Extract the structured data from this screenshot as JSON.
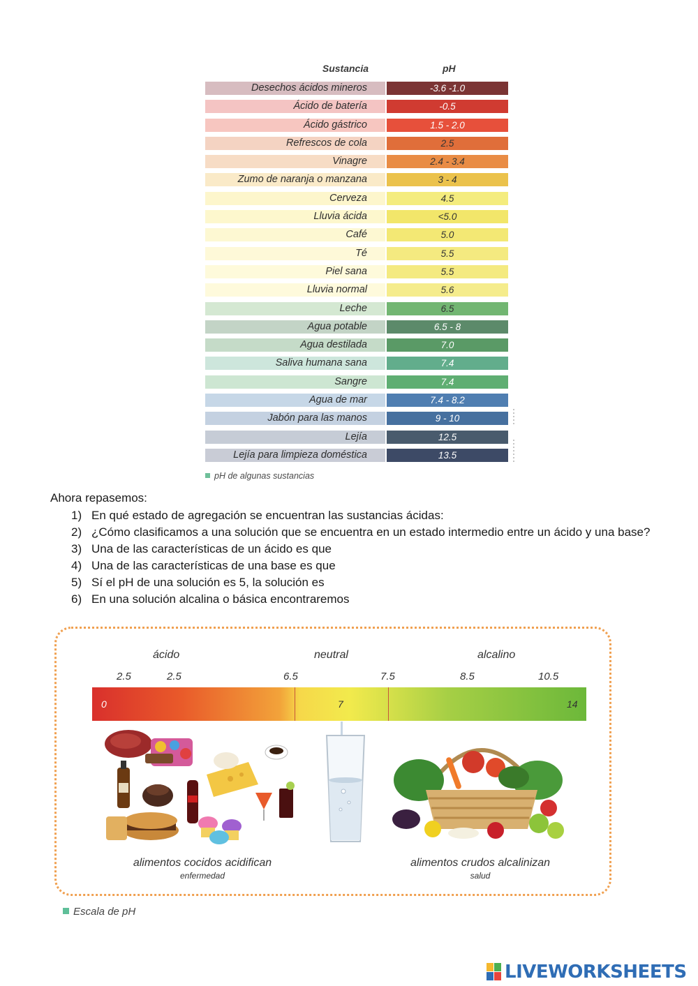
{
  "ph_table": {
    "header": {
      "substance": "Sustancia",
      "ph": "pH"
    },
    "rows": [
      {
        "name": "Desechos ácidos mineros",
        "ph": "-3.6 -1.0",
        "name_bg": "#d7bcc0",
        "ph_bg": "#7b3434",
        "ph_color": "#ffffff"
      },
      {
        "name": "Ácido de batería",
        "ph": "-0.5",
        "name_bg": "#f4c4c3",
        "ph_bg": "#d03b31",
        "ph_color": "#ffffff"
      },
      {
        "name": "Ácido gástrico",
        "ph": "1.5 - 2.0",
        "name_bg": "#f7c6c0",
        "ph_bg": "#e7503b",
        "ph_color": "#ffffff"
      },
      {
        "name": "Refrescos de cola",
        "ph": "2.5",
        "name_bg": "#f4d3c2",
        "ph_bg": "#e06e3a",
        "ph_color": "#333333"
      },
      {
        "name": "Vinagre",
        "ph": "2.4 - 3.4",
        "name_bg": "#f7dcc5",
        "ph_bg": "#e98c45",
        "ph_color": "#333333"
      },
      {
        "name": "Zumo de naranja o manzana",
        "ph": "3 - 4",
        "name_bg": "#faeac8",
        "ph_bg": "#ebc24c",
        "ph_color": "#333333"
      },
      {
        "name": "Cerveza",
        "ph": "4.5",
        "name_bg": "#fdf6cc",
        "ph_bg": "#f4ec7e",
        "ph_color": "#333333"
      },
      {
        "name": "Lluvia ácida",
        "ph": "<5.0",
        "name_bg": "#fdf7cd",
        "ph_bg": "#f2e66a",
        "ph_color": "#333333"
      },
      {
        "name": "Café",
        "ph": "5.0",
        "name_bg": "#fdf8d2",
        "ph_bg": "#f3e874",
        "ph_color": "#333333"
      },
      {
        "name": "Té",
        "ph": "5.5",
        "name_bg": "#fef9d8",
        "ph_bg": "#f4ea80",
        "ph_color": "#333333"
      },
      {
        "name": "Piel sana",
        "ph": "5.5",
        "name_bg": "#fefadb",
        "ph_bg": "#f4ea80",
        "ph_color": "#333333"
      },
      {
        "name": "Lluvia normal",
        "ph": "5.6",
        "name_bg": "#fefadc",
        "ph_bg": "#f5ec8c",
        "ph_color": "#333333"
      },
      {
        "name": "Leche",
        "ph": "6.5",
        "name_bg": "#d4e8d2",
        "ph_bg": "#72b672",
        "ph_color": "#333333"
      },
      {
        "name": "Agua potable",
        "ph": "6.5 - 8",
        "name_bg": "#c3d4c6",
        "ph_bg": "#5c8a6a",
        "ph_color": "#ffffff"
      },
      {
        "name": "Agua destilada",
        "ph": "7.0",
        "name_bg": "#c5dbc8",
        "ph_bg": "#5a9a66",
        "ph_color": "#ffffff"
      },
      {
        "name": "Saliva humana sana",
        "ph": "7.4",
        "name_bg": "#cde6dc",
        "ph_bg": "#62ad8c",
        "ph_color": "#ffffff"
      },
      {
        "name": "Sangre",
        "ph": "7.4",
        "name_bg": "#cde6d2",
        "ph_bg": "#5fae72",
        "ph_color": "#ffffff"
      },
      {
        "name": "Agua de mar",
        "ph": "7.4 - 8.2",
        "name_bg": "#c6d7e7",
        "ph_bg": "#4f7eb1",
        "ph_color": "#ffffff"
      },
      {
        "name": "Jabón para las manos",
        "ph": "9 - 10",
        "name_bg": "#c4d1e1",
        "ph_bg": "#46709f",
        "ph_color": "#ffffff"
      },
      {
        "name": "Lejía",
        "ph": "12.5",
        "name_bg": "#c6ccd6",
        "ph_bg": "#495b6d",
        "ph_color": "#ffffff"
      },
      {
        "name": "Lejía para limpieza doméstica",
        "ph": "13.5",
        "name_bg": "#c9ccd6",
        "ph_bg": "#3d4a66",
        "ph_color": "#ffffff"
      }
    ],
    "caption": "pH de algunas sustancias"
  },
  "review": {
    "intro": "Ahora repasemos:",
    "questions": [
      {
        "num": "1)",
        "text": "En qué estado de agregación se encuentran las sustancias ácidas:"
      },
      {
        "num": "2)",
        "text": "¿Cómo clasificamos a una solución que se encuentra en un estado intermedio entre un ácido y una base?"
      },
      {
        "num": "3)",
        "text": "Una de las características de un ácido es que"
      },
      {
        "num": "4)",
        "text": "Una de las características de una base es que"
      },
      {
        "num": "5)",
        "text": "Sí el pH de una solución es 5, la solución es"
      },
      {
        "num": "6)",
        "text": "En una solución alcalina o básica encontraremos"
      }
    ]
  },
  "scale": {
    "zones": {
      "acid": "ácido",
      "neutral": "neutral",
      "alkaline": "alcalino"
    },
    "ticks": [
      "2.5",
      "2.5",
      "6.5",
      "7.5",
      "8.5",
      "10.5"
    ],
    "bar_numbers": {
      "start": "0",
      "middle": "7",
      "end": "14"
    },
    "left_label": "alimentos cocidos acidifican",
    "left_sub": "enfermedad",
    "right_label": "alimentos crudos alcalinizan",
    "right_sub": "salud",
    "caption": "Escala de pH"
  },
  "logo": {
    "text": "LIVEWORKSHEETS"
  }
}
